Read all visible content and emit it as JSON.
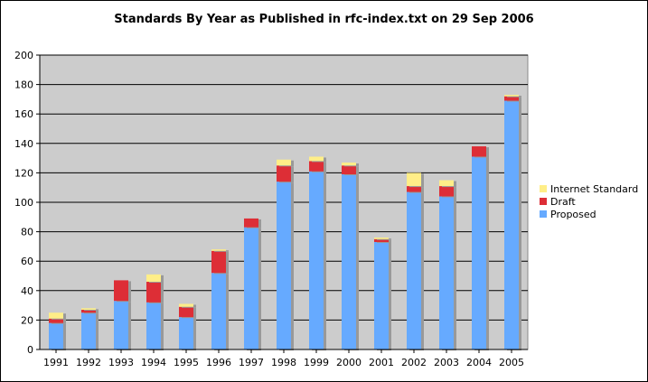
{
  "chart_data": {
    "type": "bar",
    "stacked": true,
    "title": "Standards By Year as Published in rfc-index.txt on 29 Sep 2006",
    "xlabel": "",
    "ylabel": "",
    "ylim": [
      0,
      200
    ],
    "yticks": [
      0,
      20,
      40,
      60,
      80,
      100,
      120,
      140,
      160,
      180,
      200
    ],
    "grid": true,
    "legend_position": "right",
    "plot_background": "#cccccc",
    "categories": [
      "1991",
      "1992",
      "1993",
      "1994",
      "1995",
      "1996",
      "1997",
      "1998",
      "1999",
      "2000",
      "2001",
      "2002",
      "2003",
      "2004",
      "2005"
    ],
    "series": [
      {
        "name": "Proposed",
        "color": "#66aaff",
        "values": [
          18,
          25,
          33,
          32,
          22,
          52,
          83,
          114,
          121,
          119,
          73,
          107,
          104,
          131,
          169
        ]
      },
      {
        "name": "Draft",
        "color": "#dd2e36",
        "values": [
          3,
          2,
          14,
          14,
          7,
          15,
          6,
          11,
          7,
          6,
          2,
          4,
          7,
          7,
          3
        ]
      },
      {
        "name": "Internet Standard",
        "color": "#ffee88",
        "values": [
          4,
          1,
          0,
          5,
          2,
          1,
          0,
          4,
          3,
          2,
          1,
          9,
          4,
          0,
          1
        ]
      }
    ],
    "legend_order": [
      "Internet Standard",
      "Draft",
      "Proposed"
    ]
  }
}
